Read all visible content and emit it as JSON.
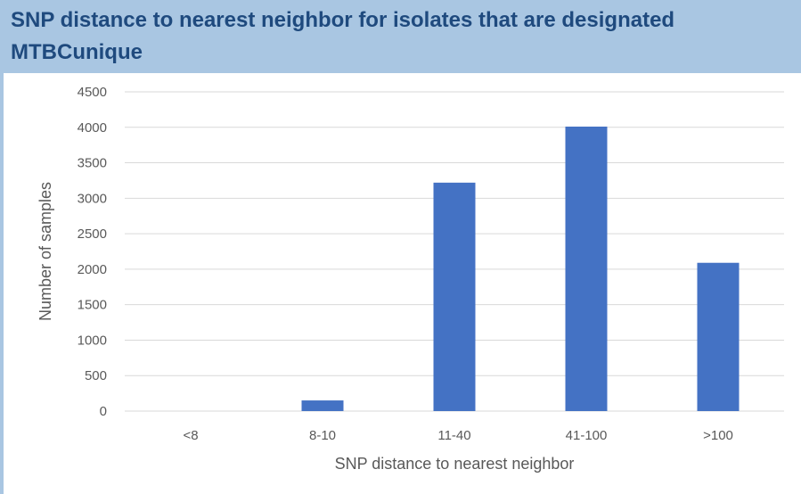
{
  "title_line1": "SNP distance to nearest neighbor for isolates that are designated",
  "title_line2": "MTBCunique",
  "colors": {
    "banner": "#a9c6e2",
    "title": "#1f4a7e",
    "bar": "#4472c4",
    "grid": "#d9d9d9",
    "text": "#595959"
  },
  "chart_data": {
    "type": "bar",
    "title": "SNP distance to nearest neighbor for isolates that are designated MTBCunique",
    "xlabel": "SNP distance to nearest neighbor",
    "ylabel": "Number of samples",
    "categories": [
      "<8",
      "8-10",
      "11-40",
      "41-100",
      ">100"
    ],
    "values": [
      0,
      150,
      3220,
      4010,
      2090
    ],
    "ylim": [
      0,
      4500
    ],
    "yticks": [
      "0",
      "500",
      "1000",
      "1500",
      "2000",
      "2500",
      "3000",
      "3500",
      "4000",
      "4500"
    ],
    "grid": true,
    "legend": "none"
  }
}
